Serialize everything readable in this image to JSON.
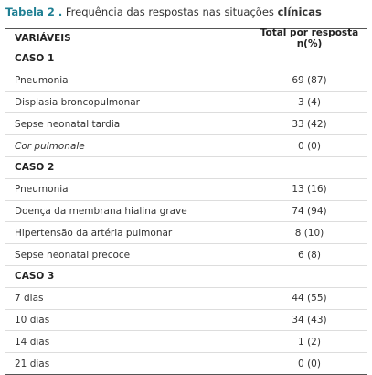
{
  "title": {
    "label": "Tabela 2 .",
    "text": "Frequência das respostas nas situações",
    "emphasis": "clínicas"
  },
  "table": {
    "header": [
      "VARIÁVEIS",
      "Total por resposta n(%)"
    ],
    "sections": [
      {
        "title": "CASO 1",
        "rows": [
          [
            "Pneumonia",
            "69 (87)"
          ],
          [
            "Displasia broncopulmonar",
            "3 (4)"
          ],
          [
            "Sepse neonatal tardia",
            "33 (42)"
          ],
          [
            "Cor pulmonale",
            "0 (0)"
          ]
        ]
      },
      {
        "title": "CASO 2",
        "rows": [
          [
            "Pneumonia",
            "13 (16)"
          ],
          [
            "Doença da membrana hialina grave",
            "74 (94)"
          ],
          [
            "Hipertensão da artéria pulmonar",
            "8 (10)"
          ],
          [
            "Sepse neonatal precoce",
            "6 (8)"
          ]
        ]
      },
      {
        "title": "CASO 3",
        "rows": [
          [
            "7 dias",
            "44 (55)"
          ],
          [
            "10 dias",
            "34 (43)"
          ],
          [
            "14 dias",
            "1 (2)"
          ],
          [
            "21 dias",
            "0 (0)"
          ]
        ]
      }
    ]
  }
}
